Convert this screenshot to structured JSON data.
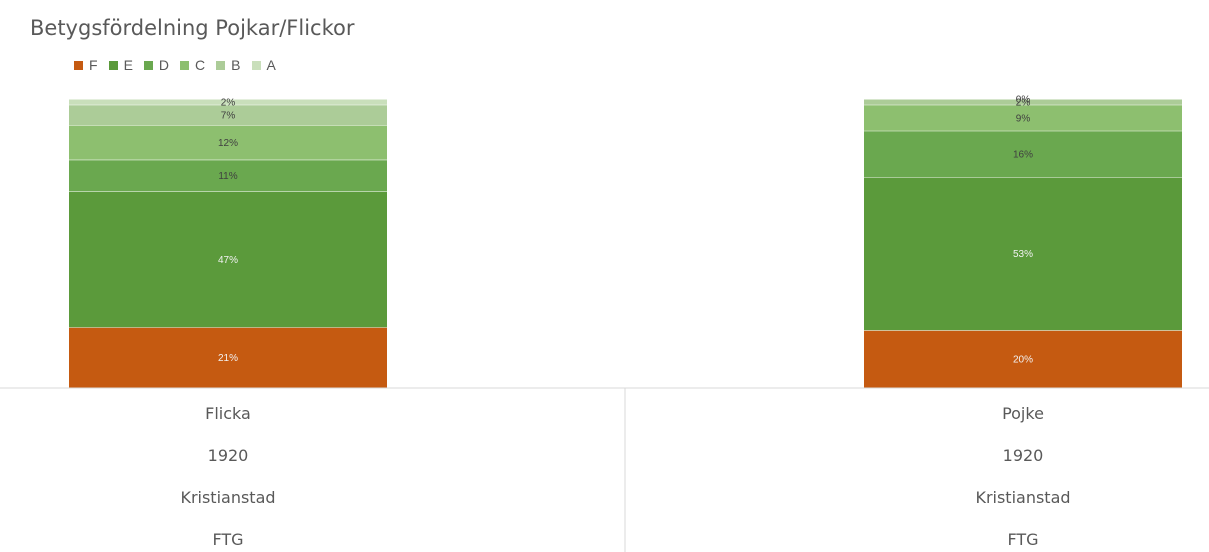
{
  "chart_data": {
    "type": "bar",
    "stacked": true,
    "title": "Betygsfördelning Pojkar/Flickor",
    "legend_position": "top-left",
    "grid": false,
    "ylim": [
      0,
      100
    ],
    "series": [
      {
        "name": "F",
        "color": "#C55A11",
        "values": [
          21,
          20
        ],
        "labels": [
          "21%",
          "20%"
        ]
      },
      {
        "name": "E",
        "color": "#5B9A3B",
        "values": [
          47,
          53
        ],
        "labels": [
          "47%",
          "53%"
        ]
      },
      {
        "name": "D",
        "color": "#6AA84F",
        "values": [
          11,
          16
        ],
        "labels": [
          "11%",
          "16%"
        ]
      },
      {
        "name": "C",
        "color": "#8DBF6F",
        "values": [
          12,
          9
        ],
        "labels": [
          "12%",
          "9%"
        ]
      },
      {
        "name": "B",
        "color": "#ACCC98",
        "values": [
          7,
          2
        ],
        "labels": [
          "7%",
          "2%"
        ]
      },
      {
        "name": "A",
        "color": "#C9DFBB",
        "values": [
          2,
          0
        ],
        "labels": [
          "2%",
          "0%"
        ]
      }
    ],
    "categories": [
      {
        "levels": [
          "Flicka",
          "1920",
          "Kristianstad",
          "FTG"
        ]
      },
      {
        "levels": [
          "Pojke",
          "1920",
          "Kristianstad",
          "FTG"
        ]
      }
    ]
  }
}
